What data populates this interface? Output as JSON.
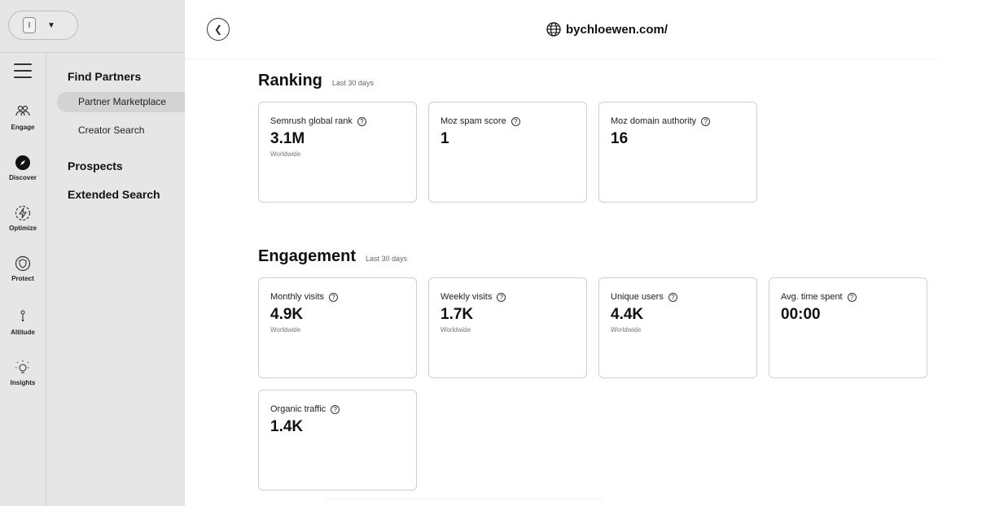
{
  "account": {
    "initial": "I"
  },
  "nav": {
    "items": [
      {
        "label": "Engage",
        "icon": "people-icon"
      },
      {
        "label": "Discover",
        "icon": "compass-icon"
      },
      {
        "label": "Optimize",
        "icon": "lightning-icon"
      },
      {
        "label": "Protect",
        "icon": "shield-icon"
      },
      {
        "label": "Altitude",
        "icon": "altitude-icon"
      },
      {
        "label": "Insights",
        "icon": "lightbulb-icon"
      }
    ]
  },
  "submenu": {
    "find_partners": "Find Partners",
    "partner_marketplace": "Partner Marketplace",
    "creator_search": "Creator Search",
    "prospects": "Prospects",
    "extended_search": "Extended Search"
  },
  "header": {
    "domain": "bychloewen.com/"
  },
  "ranking": {
    "title": "Ranking",
    "subtitle": "Last 30 days",
    "cards": [
      {
        "label": "Semrush global rank",
        "value": "3.1M",
        "sub": "Worldwide"
      },
      {
        "label": "Moz spam score",
        "value": "1",
        "sub": ""
      },
      {
        "label": "Moz domain authority",
        "value": "16",
        "sub": ""
      }
    ]
  },
  "engagement": {
    "title": "Engagement",
    "subtitle": "Last 30 days",
    "cards": [
      {
        "label": "Monthly visits",
        "value": "4.9K",
        "sub": "Worldwide"
      },
      {
        "label": "Weekly visits",
        "value": "1.7K",
        "sub": "Worldwide"
      },
      {
        "label": "Unique users",
        "value": "4.4K",
        "sub": "Worldwide"
      },
      {
        "label": "Avg. time spent",
        "value": "00:00",
        "sub": ""
      },
      {
        "label": "Organic traffic",
        "value": "1.4K",
        "sub": ""
      }
    ]
  }
}
